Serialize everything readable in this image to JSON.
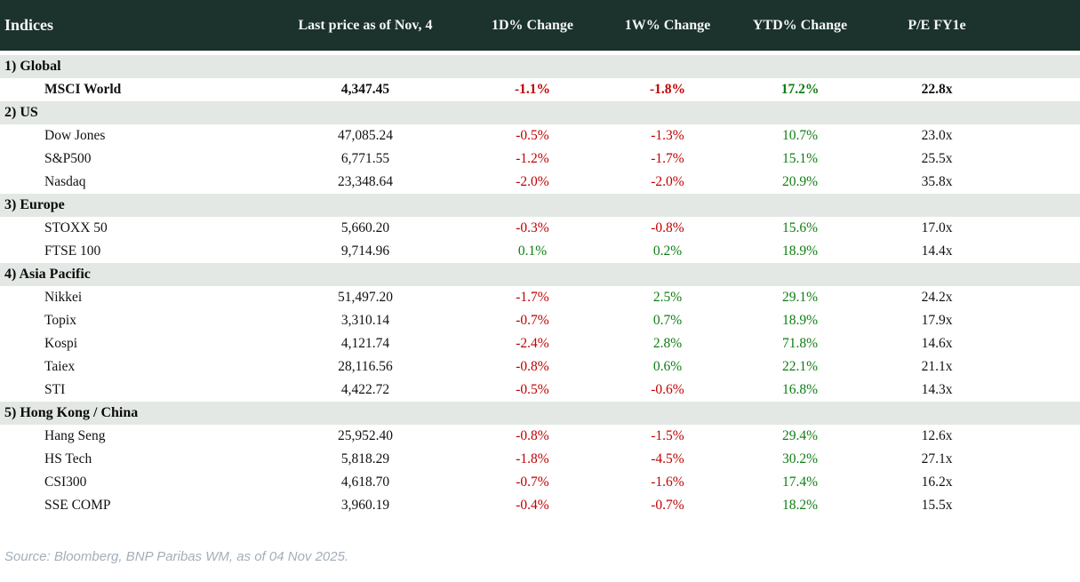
{
  "chart_data": {
    "type": "table",
    "title": "Indices",
    "columns": [
      "Indices",
      "Last price as of Nov, 4",
      "1D% Change",
      "1W% Change",
      "YTD% Change",
      "P/E FY1e"
    ],
    "sections": [
      {
        "label": "1) Global",
        "rows": [
          {
            "name": "MSCI World",
            "bold": true,
            "last_price": "4,347.45",
            "d1": "-1.1%",
            "w1": "-1.8%",
            "ytd": "17.2%",
            "pe": "22.8x"
          }
        ]
      },
      {
        "label": "2) US",
        "rows": [
          {
            "name": "Dow Jones",
            "bold": false,
            "last_price": "47,085.24",
            "d1": "-0.5%",
            "w1": "-1.3%",
            "ytd": "10.7%",
            "pe": "23.0x"
          },
          {
            "name": "S&P500",
            "bold": false,
            "last_price": "6,771.55",
            "d1": "-1.2%",
            "w1": "-1.7%",
            "ytd": "15.1%",
            "pe": "25.5x"
          },
          {
            "name": "Nasdaq",
            "bold": false,
            "last_price": "23,348.64",
            "d1": "-2.0%",
            "w1": "-2.0%",
            "ytd": "20.9%",
            "pe": "35.8x"
          }
        ]
      },
      {
        "label": "3) Europe",
        "rows": [
          {
            "name": "STOXX 50",
            "bold": false,
            "last_price": "5,660.20",
            "d1": "-0.3%",
            "w1": "-0.8%",
            "ytd": "15.6%",
            "pe": "17.0x"
          },
          {
            "name": "FTSE 100",
            "bold": false,
            "last_price": "9,714.96",
            "d1": "0.1%",
            "w1": "0.2%",
            "ytd": "18.9%",
            "pe": "14.4x"
          }
        ]
      },
      {
        "label": "4) Asia Pacific",
        "rows": [
          {
            "name": "Nikkei",
            "bold": false,
            "last_price": "51,497.20",
            "d1": "-1.7%",
            "w1": "2.5%",
            "ytd": "29.1%",
            "pe": "24.2x"
          },
          {
            "name": "Topix",
            "bold": false,
            "last_price": "3,310.14",
            "d1": "-0.7%",
            "w1": "0.7%",
            "ytd": "18.9%",
            "pe": "17.9x"
          },
          {
            "name": "Kospi",
            "bold": false,
            "last_price": "4,121.74",
            "d1": "-2.4%",
            "w1": "2.8%",
            "ytd": "71.8%",
            "pe": "14.6x"
          },
          {
            "name": "Taiex",
            "bold": false,
            "last_price": "28,116.56",
            "d1": "-0.8%",
            "w1": "0.6%",
            "ytd": "22.1%",
            "pe": "21.1x"
          },
          {
            "name": "STI",
            "bold": false,
            "last_price": "4,422.72",
            "d1": "-0.5%",
            "w1": "-0.6%",
            "ytd": "16.8%",
            "pe": "14.3x"
          }
        ]
      },
      {
        "label": "5) Hong Kong / China",
        "rows": [
          {
            "name": "Hang Seng",
            "bold": false,
            "last_price": "25,952.40",
            "d1": "-0.8%",
            "w1": "-1.5%",
            "ytd": "29.4%",
            "pe": "12.6x"
          },
          {
            "name": "HS Tech",
            "bold": false,
            "last_price": "5,818.29",
            "d1": "-1.8%",
            "w1": "-4.5%",
            "ytd": "30.2%",
            "pe": "27.1x"
          },
          {
            "name": "CSI300",
            "bold": false,
            "last_price": "4,618.70",
            "d1": "-0.7%",
            "w1": "-1.6%",
            "ytd": "17.4%",
            "pe": "16.2x"
          },
          {
            "name": "SSE COMP",
            "bold": false,
            "last_price": "3,960.19",
            "d1": "-0.4%",
            "w1": "-0.7%",
            "ytd": "18.2%",
            "pe": "15.5x"
          }
        ]
      }
    ]
  },
  "footer": {
    "source": "Source: Bloomberg, BNP Paribas WM, as of 04 Nov 2025."
  },
  "colors": {
    "header_bg": "#1b322d",
    "section_bg": "#e3e8e4",
    "negative": "#c00000",
    "positive": "#0e7d12"
  }
}
